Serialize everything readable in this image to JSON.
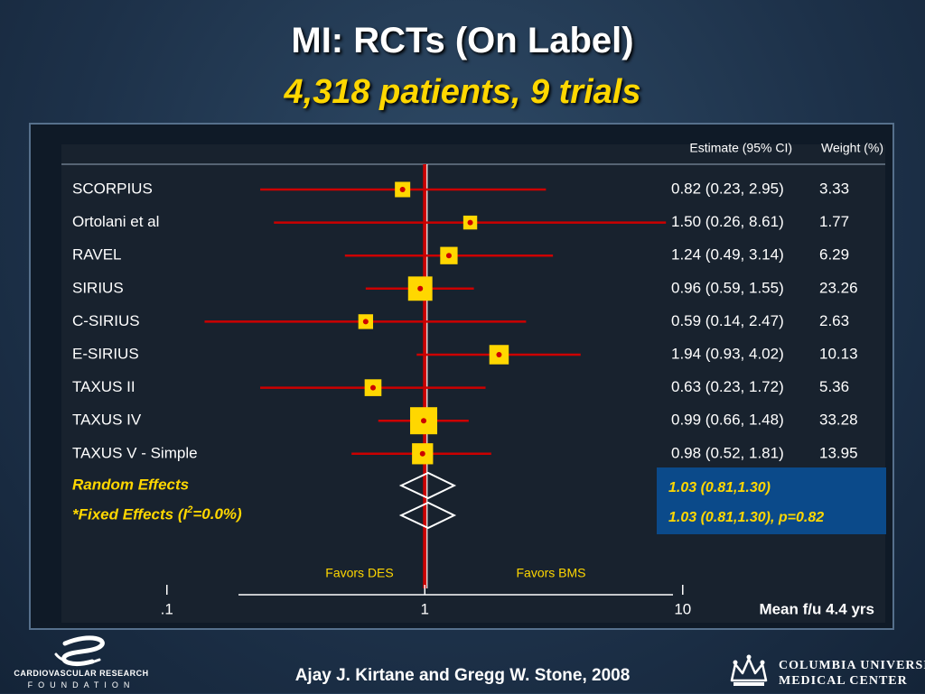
{
  "slide": {
    "title": "MI: RCTs (On Label)",
    "subtitle": "4,318 patients, 9 trials",
    "citation": "Ajay J. Kirtane and Gregg W. Stone, 2008",
    "logo_left_name": "CARDIOVASCULAR RESEARCH",
    "logo_left_sub": "FOUNDATION",
    "logo_right_line1": "COLUMBIA UNIVERSITY",
    "logo_right_line2": "MEDICAL CENTER"
  },
  "colors": {
    "ci_line": "#cc0000",
    "box": "#ffd700",
    "point": "#cc0000",
    "reference_line": "#cc0000",
    "highlight_text": "#ffd700",
    "pooled_box_bg": "#0b4a8a"
  },
  "chart_data": {
    "type": "forest",
    "x_scale": "log",
    "xlim": [
      0.039,
      61
    ],
    "x_ticks": [
      0.1,
      1,
      10
    ],
    "x_tick_labels": [
      ".1",
      "1",
      "10"
    ],
    "reference_value": 1,
    "header_estimate": "Estimate (95% CI)",
    "header_weight": "Weight (%)",
    "favors_left": "Favors DES",
    "favors_right": "Favors BMS",
    "note": "Mean f/u 4.4 yrs",
    "studies": [
      {
        "name": "SCORPIUS",
        "estimate": 0.82,
        "lower": 0.23,
        "upper": 2.95,
        "ci_text": "0.82 (0.23, 2.95)",
        "weight": 3.33,
        "weight_text": "3.33"
      },
      {
        "name": "Ortolani et al",
        "estimate": 1.5,
        "lower": 0.26,
        "upper": 8.61,
        "ci_text": "1.50 (0.26, 8.61)",
        "weight": 1.77,
        "weight_text": "1.77"
      },
      {
        "name": "RAVEL",
        "estimate": 1.24,
        "lower": 0.49,
        "upper": 3.14,
        "ci_text": "1.24 (0.49, 3.14)",
        "weight": 6.29,
        "weight_text": "6.29"
      },
      {
        "name": "SIRIUS",
        "estimate": 0.96,
        "lower": 0.59,
        "upper": 1.55,
        "ci_text": "0.96 (0.59, 1.55)",
        "weight": 23.26,
        "weight_text": "23.26"
      },
      {
        "name": "C-SIRIUS",
        "estimate": 0.59,
        "lower": 0.14,
        "upper": 2.47,
        "ci_text": "0.59 (0.14, 2.47)",
        "weight": 2.63,
        "weight_text": "2.63"
      },
      {
        "name": "E-SIRIUS",
        "estimate": 1.94,
        "lower": 0.93,
        "upper": 4.02,
        "ci_text": "1.94 (0.93, 4.02)",
        "weight": 10.13,
        "weight_text": "10.13"
      },
      {
        "name": "TAXUS II",
        "estimate": 0.63,
        "lower": 0.23,
        "upper": 1.72,
        "ci_text": "0.63 (0.23, 1.72)",
        "weight": 5.36,
        "weight_text": "5.36"
      },
      {
        "name": "TAXUS IV",
        "estimate": 0.99,
        "lower": 0.66,
        "upper": 1.48,
        "ci_text": "0.99 (0.66, 1.48)",
        "weight": 33.28,
        "weight_text": "33.28"
      },
      {
        "name": "TAXUS V - Simple",
        "estimate": 0.98,
        "lower": 0.52,
        "upper": 1.81,
        "ci_text": "0.98 (0.52, 1.81)",
        "weight": 13.95,
        "weight_text": "13.95"
      }
    ],
    "pooled": [
      {
        "name": "Random Effects",
        "estimate": 1.03,
        "lower": 0.81,
        "upper": 1.3,
        "ci_text": "1.03 (0.81,1.30)"
      },
      {
        "name": "*Fixed Effects (I",
        "name_sup": "2",
        "name_suffix": "=0.0%)",
        "estimate": 1.03,
        "lower": 0.81,
        "upper": 1.3,
        "ci_text": "1.03 (0.81,1.30), p=0.82"
      }
    ]
  }
}
